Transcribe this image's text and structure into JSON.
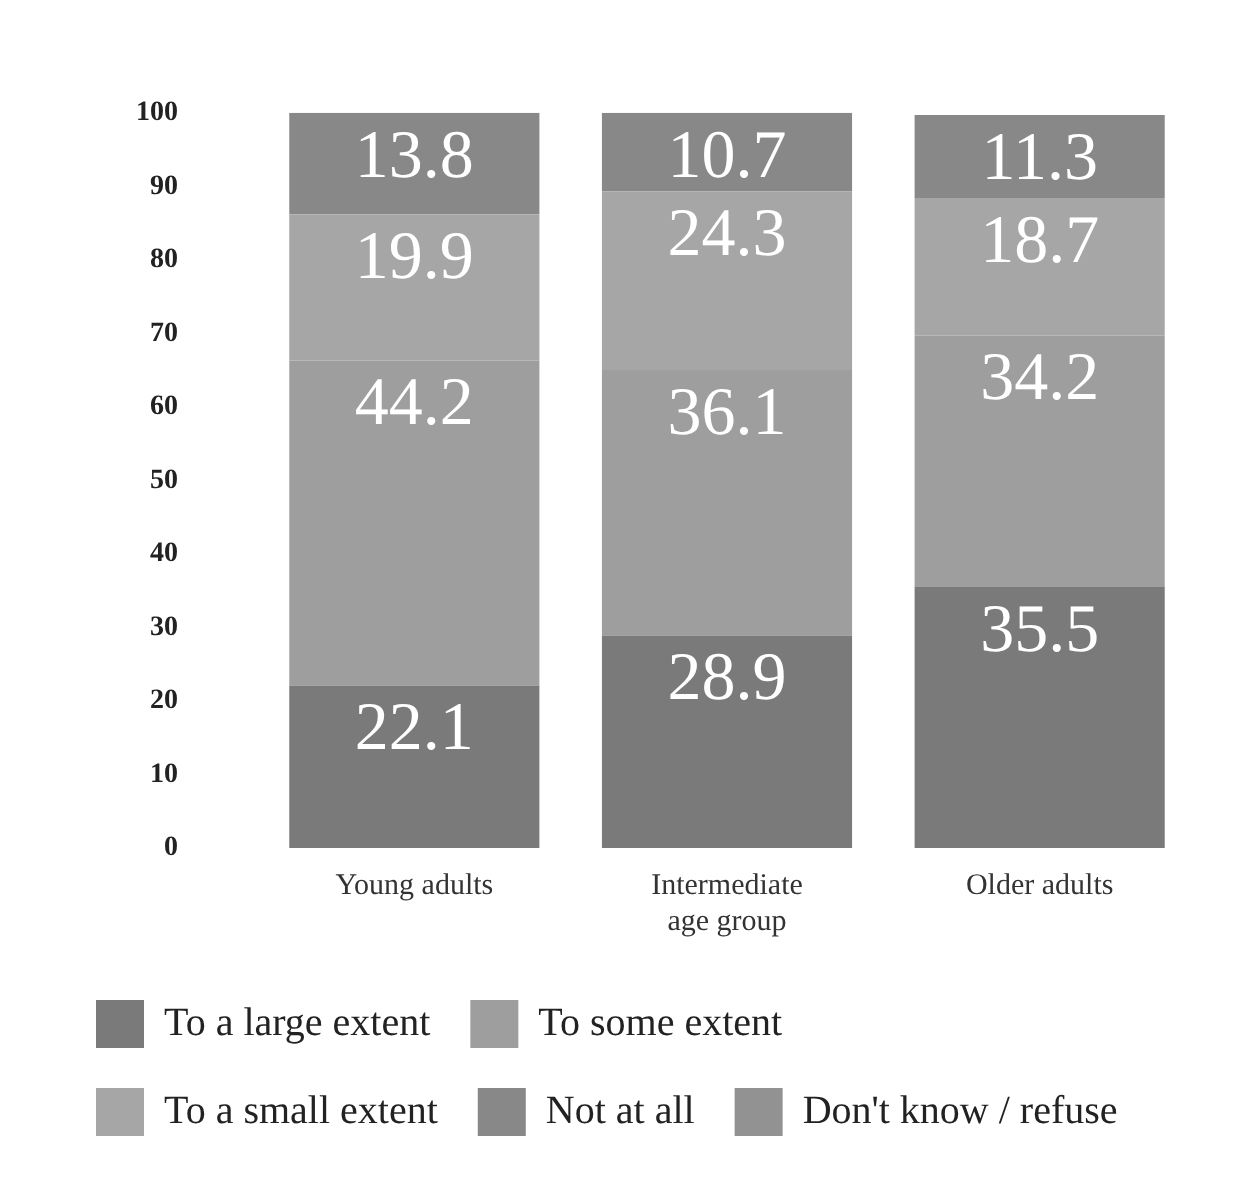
{
  "chart_data": {
    "type": "bar",
    "stacked": true,
    "categories": [
      "Young adults",
      "Intermediate age group",
      "Older adults"
    ],
    "series": [
      {
        "name": "To a large extent",
        "color": "#7a7a7a",
        "values": [
          22.1,
          28.9,
          35.5
        ]
      },
      {
        "name": "To some extent",
        "color": "#9e9e9e",
        "values": [
          44.2,
          36.1,
          34.2
        ]
      },
      {
        "name": "To a small extent",
        "color": "#a6a6a6",
        "values": [
          19.9,
          24.3,
          18.7
        ]
      },
      {
        "name": "Not at all",
        "color": "#888888",
        "values": [
          13.8,
          10.7,
          11.3
        ]
      },
      {
        "name": "Don't know / refuse",
        "color": "#929292",
        "values": [
          null,
          null,
          null
        ]
      }
    ],
    "ylim": [
      0,
      100
    ],
    "yticks": [
      0,
      10,
      20,
      30,
      40,
      50,
      60,
      70,
      80,
      90,
      100
    ],
    "grid": false,
    "legend": "bottom",
    "data_labels": true
  }
}
